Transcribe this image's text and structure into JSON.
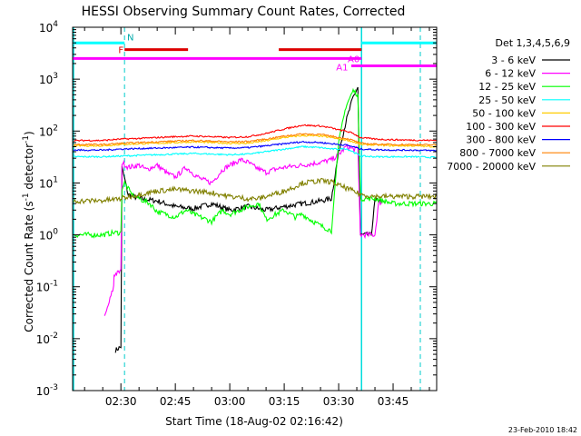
{
  "chart_data": {
    "type": "line",
    "title": "HESSI Observing Summary Count Rates, Corrected",
    "xlabel": "Start Time (18-Aug-02 02:16:42)",
    "ylabel": "Corrected Count Rate (s",
    "ylabel_sup": "-1",
    "ylabel_mid": " detector",
    "ylabel_sup2": "-1",
    "ylabel_end": ")",
    "footer": "23-Feb-2010 18:42",
    "x_tick_labels": [
      "02:30",
      "02:45",
      "03:00",
      "03:15",
      "03:30",
      "03:45"
    ],
    "x_tick_minutes": [
      30,
      45,
      60,
      75,
      90,
      105
    ],
    "xlim_minutes": [
      16.7,
      117.0
    ],
    "ylim": [
      0.001,
      10000
    ],
    "y_scale": "log",
    "y_ticks": [
      {
        "base": "10",
        "exp": "-3",
        "value": 0.001
      },
      {
        "base": "10",
        "exp": "-2",
        "value": 0.01
      },
      {
        "base": "10",
        "exp": "-1",
        "value": 0.1
      },
      {
        "base": "10",
        "exp": "0",
        "value": 1
      },
      {
        "base": "10",
        "exp": "1",
        "value": 10
      },
      {
        "base": "10",
        "exp": "2",
        "value": 100
      },
      {
        "base": "10",
        "exp": "3",
        "value": 1000
      },
      {
        "base": "10",
        "exp": "4",
        "value": 10000
      }
    ],
    "legend_title": "Det 1,3,4,5,6,9",
    "legend_placement": "right",
    "series": [
      {
        "name": "3 - 6 keV",
        "color": "#000000",
        "x": [
          28.5,
          30.0,
          30.3,
          32,
          35,
          40,
          45,
          50,
          55,
          60,
          65,
          70,
          75,
          80,
          85,
          88,
          90,
          92,
          94,
          95.3,
          96,
          98,
          99,
          100,
          101,
          102
        ],
        "y": [
          0.006,
          0.007,
          20,
          6,
          5,
          4.5,
          3.5,
          3.2,
          4,
          3,
          3.5,
          3,
          3.5,
          4,
          4.5,
          5,
          40,
          150,
          450,
          700,
          1.0,
          1.0,
          1.0,
          4.5,
          4.6,
          4.5
        ]
      },
      {
        "name": "6 - 12 keV",
        "color": "#ff00ff",
        "x": [
          25.5,
          28.0,
          28.1,
          30.0,
          30.3,
          32,
          35,
          37,
          40,
          43,
          45,
          48,
          50,
          52,
          55,
          58,
          60,
          63,
          65,
          67,
          70,
          72,
          75,
          80,
          85,
          88,
          90,
          92,
          94,
          95.3,
          96,
          98,
          99,
          100,
          101,
          102
        ],
        "y": [
          0.025,
          0.1,
          0.17,
          0.2,
          25,
          20,
          22,
          18,
          22,
          15,
          13,
          20,
          15,
          12,
          10,
          18,
          22,
          28,
          25,
          20,
          16,
          18,
          20,
          22,
          25,
          28,
          35,
          50,
          45,
          45,
          1.0,
          1.0,
          1.0,
          1.0,
          4.0,
          4.5
        ]
      },
      {
        "name": "12 - 25 keV",
        "color": "#00ff00",
        "x": [
          17,
          20,
          25,
          28,
          30.0,
          30.3,
          31,
          33,
          35,
          38,
          40,
          45,
          48,
          50,
          55,
          58,
          60,
          65,
          68,
          70,
          75,
          78,
          80,
          82,
          85,
          88,
          89,
          90,
          92,
          94,
          95.3,
          96,
          98,
          100,
          105,
          110,
          115,
          117
        ],
        "y": [
          1.0,
          1.0,
          1.0,
          1.1,
          1.1,
          8,
          10,
          6,
          5,
          4,
          2.8,
          2.2,
          3,
          2.5,
          1.8,
          3,
          2.5,
          3.5,
          4,
          2,
          3,
          2.2,
          2.5,
          2,
          1.5,
          1.2,
          10,
          60,
          300,
          600,
          500,
          5,
          5,
          5,
          4,
          4,
          4,
          4
        ]
      },
      {
        "name": "25 - 50 keV",
        "color": "#00ffff",
        "x": [
          17,
          20,
          25,
          30,
          35,
          40,
          45,
          50,
          55,
          60,
          65,
          70,
          75,
          80,
          85,
          88,
          90,
          92,
          94,
          96,
          100,
          105,
          110,
          117
        ],
        "y": [
          32,
          32,
          32,
          33,
          34,
          35,
          36,
          37,
          36,
          35,
          36,
          40,
          45,
          50,
          48,
          45,
          45,
          46,
          40,
          33,
          32,
          32,
          32,
          31
        ]
      },
      {
        "name": "50 - 100 keV",
        "color": "#ffcc00",
        "x": [
          17,
          20,
          25,
          30,
          35,
          40,
          45,
          50,
          55,
          60,
          65,
          70,
          75,
          80,
          85,
          88,
          90,
          92,
          94,
          96,
          100,
          105,
          110,
          117
        ],
        "y": [
          52,
          52,
          52,
          55,
          57,
          58,
          60,
          62,
          60,
          58,
          58,
          65,
          75,
          82,
          80,
          75,
          70,
          68,
          62,
          55,
          54,
          52,
          52,
          50
        ]
      },
      {
        "name": "100 - 300 keV",
        "color": "#ff0000",
        "x": [
          17,
          20,
          25,
          30,
          35,
          40,
          45,
          50,
          55,
          60,
          65,
          70,
          75,
          80,
          85,
          88,
          90,
          92,
          94,
          96,
          100,
          105,
          110,
          117
        ],
        "y": [
          65,
          66,
          66,
          70,
          72,
          75,
          78,
          80,
          78,
          75,
          78,
          90,
          110,
          130,
          125,
          115,
          105,
          100,
          90,
          75,
          70,
          68,
          67,
          66
        ]
      },
      {
        "name": "300 - 800 keV",
        "color": "#0000ff",
        "x": [
          17,
          20,
          25,
          30,
          35,
          40,
          45,
          50,
          55,
          60,
          65,
          70,
          75,
          80,
          85,
          88,
          90,
          92,
          94,
          96,
          100,
          105,
          110,
          117
        ],
        "y": [
          43,
          43,
          43,
          45,
          46,
          47,
          48,
          49,
          48,
          47,
          48,
          52,
          57,
          62,
          60,
          57,
          55,
          54,
          50,
          45,
          44,
          43,
          43,
          42
        ]
      },
      {
        "name": "800 - 7000 keV",
        "color": "#ff8000",
        "x": [
          17,
          20,
          25,
          30,
          35,
          40,
          45,
          50,
          55,
          60,
          65,
          70,
          75,
          80,
          85,
          88,
          90,
          92,
          94,
          96,
          100,
          105,
          110,
          117
        ],
        "y": [
          55,
          55,
          55,
          58,
          60,
          62,
          64,
          66,
          64,
          62,
          63,
          70,
          80,
          88,
          86,
          80,
          75,
          72,
          66,
          58,
          56,
          55,
          55,
          54
        ]
      },
      {
        "name": "7000 - 20000 keV",
        "color": "#808000",
        "x": [
          17,
          20,
          25,
          28,
          30,
          35,
          40,
          45,
          50,
          55,
          60,
          65,
          68,
          70,
          75,
          78,
          80,
          85,
          88,
          90,
          92,
          94,
          96,
          100,
          105,
          110,
          117
        ],
        "y": [
          4.5,
          4.5,
          4.6,
          4.8,
          5,
          6,
          7,
          7.5,
          7,
          6.5,
          5.5,
          5,
          5,
          5.5,
          7,
          8.5,
          10,
          11,
          10.5,
          9,
          8,
          7,
          6,
          5.5,
          5.5,
          5.5,
          5.5
        ]
      }
    ],
    "night_intervals": [
      [
        16.7,
        31.0
      ],
      [
        96.3,
        117.0
      ]
    ],
    "night_dashes": [
      31.0,
      112.5
    ],
    "night_solid": [
      96.3
    ],
    "night_label": "N",
    "bars": [
      {
        "label": "N",
        "color": "#00ffff",
        "level": 5000,
        "intervals": [
          [
            16.7,
            31.0
          ],
          [
            96.3,
            117.0
          ]
        ]
      },
      {
        "label": "F",
        "color": "#dd0000",
        "level": 3700,
        "intervals": [
          [
            31.0,
            48.5
          ],
          [
            73.5,
            96.3
          ]
        ]
      },
      {
        "label": "",
        "color": "#ff00ff",
        "level": 2500,
        "intervals": [
          [
            16.7,
            96.3
          ]
        ]
      },
      {
        "label": "A0",
        "color": "#ff00ff",
        "level": 2500,
        "intervals": []
      },
      {
        "label": "A1",
        "color": "#ff00ff",
        "level": 1800,
        "intervals": [
          [
            93.5,
            117.0
          ]
        ]
      }
    ]
  }
}
